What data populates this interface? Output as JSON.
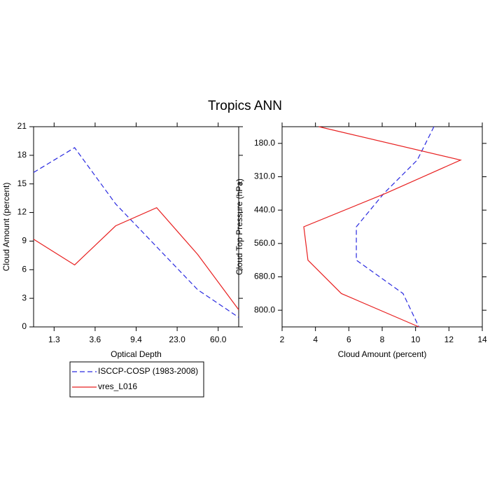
{
  "title": "Tropics ANN",
  "chart_data": [
    {
      "type": "line",
      "orientation": "vertical",
      "xlabel": "Optical Depth",
      "ylabel": "Cloud Amount (percent)",
      "x": [
        0,
        1,
        2,
        3,
        4,
        5
      ],
      "xlim": [
        0,
        5
      ],
      "xticks": [
        {
          "value": 0.5,
          "label": "1.3"
        },
        {
          "value": 1.5,
          "label": "3.6"
        },
        {
          "value": 2.5,
          "label": "9.4"
        },
        {
          "value": 3.5,
          "label": "23.0"
        },
        {
          "value": 4.5,
          "label": "60.0"
        }
      ],
      "ylim": [
        0,
        21
      ],
      "yticks": [
        0,
        3,
        6,
        9,
        12,
        15,
        18,
        21
      ],
      "series": [
        {
          "name": "ISCCP-COSP (1983-2008)",
          "color": "#2a2ae0",
          "line_style": "dashed",
          "values": [
            16.2,
            18.8,
            12.9,
            8.4,
            3.9,
            1.0
          ]
        },
        {
          "name": "vres_L016",
          "color": "#e82020",
          "line_style": "solid",
          "values": [
            9.2,
            6.5,
            10.6,
            12.5,
            7.6,
            1.8
          ]
        }
      ]
    },
    {
      "type": "line",
      "orientation": "horizontal",
      "xlabel": "Cloud Amount (percent)",
      "ylabel": "Cloud Top Pressure (hPa)",
      "y": [
        0,
        1,
        2,
        3,
        4,
        5,
        6
      ],
      "ylim": [
        6,
        0
      ],
      "yticks": [
        {
          "value": 0.5,
          "label": "180.0"
        },
        {
          "value": 1.5,
          "label": "310.0"
        },
        {
          "value": 2.5,
          "label": "440.0"
        },
        {
          "value": 3.5,
          "label": "560.0"
        },
        {
          "value": 4.5,
          "label": "680.0"
        },
        {
          "value": 5.5,
          "label": "800.0"
        }
      ],
      "xlim": [
        2,
        14
      ],
      "xticks": [
        2,
        4,
        6,
        8,
        10,
        12,
        14
      ],
      "series": [
        {
          "color": "#2a2ae0",
          "line_style": "dashed",
          "values": [
            11.1,
            10.1,
            8.1,
            6.45,
            6.45,
            9.25,
            10.2
          ]
        },
        {
          "color": "#e82020",
          "line_style": "solid",
          "values": [
            4.2,
            12.7,
            8.2,
            3.3,
            3.55,
            5.55,
            10.2
          ]
        }
      ]
    }
  ]
}
